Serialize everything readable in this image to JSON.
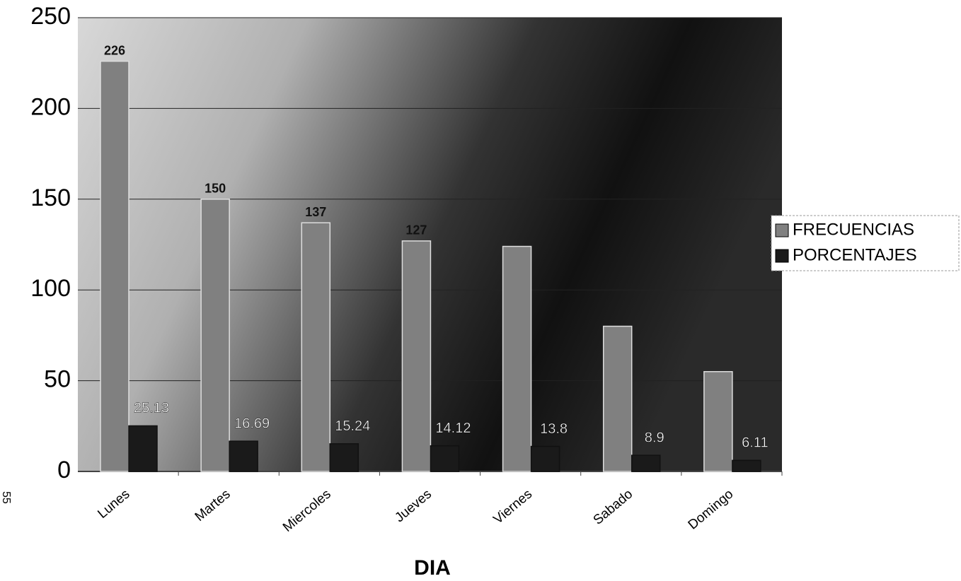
{
  "chart_data": {
    "type": "bar",
    "x_label": "DIA",
    "annotation": "55",
    "categories": [
      "Lunes",
      "Martes",
      "Miercoles",
      "Jueves",
      "Viernes",
      "Sabado",
      "Domingo"
    ],
    "series": [
      {
        "name": "FRECUENCIAS",
        "color": "#808080",
        "values": [
          226,
          150,
          137,
          127,
          124,
          80,
          55
        ],
        "value_labels": [
          "226",
          "150",
          "137",
          "127",
          null,
          null,
          null
        ]
      },
      {
        "name": "PORCENTAJES",
        "color": "#1a1a1a",
        "values": [
          25.13,
          16.69,
          15.24,
          14.12,
          13.8,
          8.9,
          6.11
        ]
      }
    ],
    "ylim": [
      0,
      250
    ],
    "yticks": [
      0,
      50,
      100,
      150,
      200,
      250
    ],
    "grid": true,
    "legend": "right"
  }
}
